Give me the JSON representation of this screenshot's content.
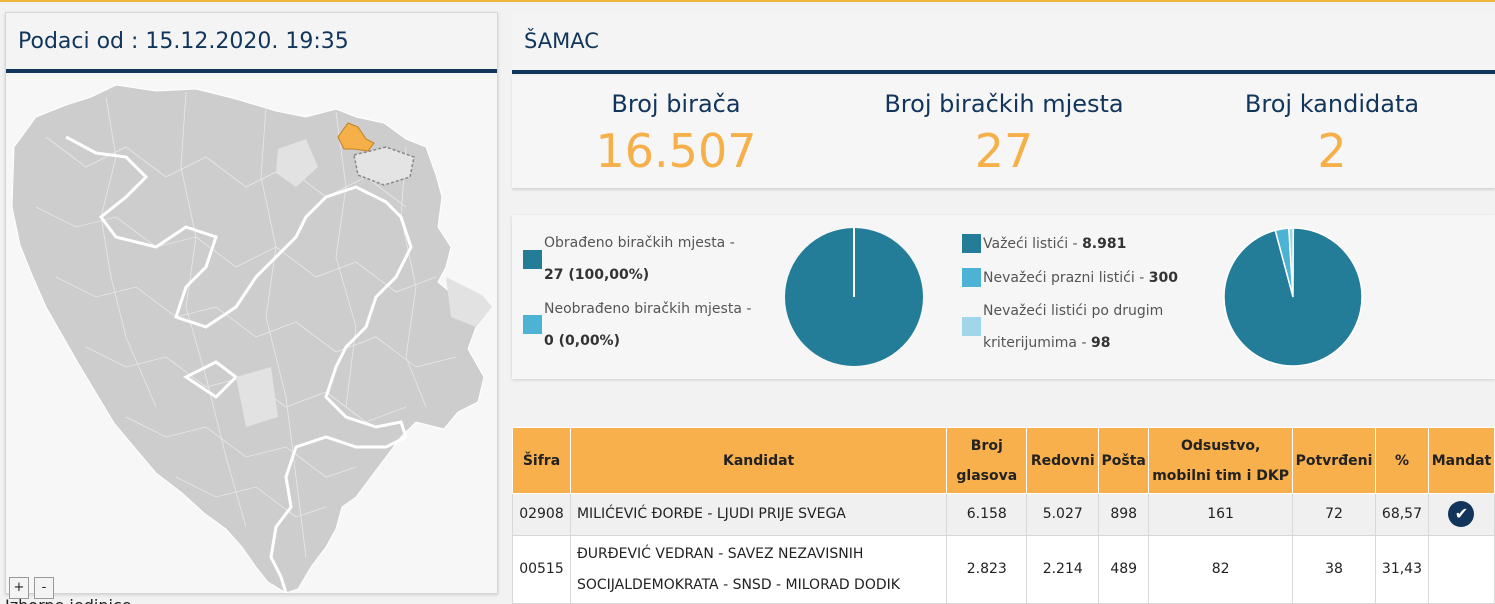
{
  "header": {
    "data_date": "Podaci od : 15.12.2020. 19:35"
  },
  "map": {
    "zoom_in": "+",
    "zoom_out": "-",
    "footer_text": "Izborne jedinice"
  },
  "municipality": {
    "name": "ŠAMAC"
  },
  "stats": [
    {
      "label": "Broj birača",
      "value": "16.507"
    },
    {
      "label": "Broj biračkih mjesta",
      "value": "27"
    },
    {
      "label": "Broj kandidata",
      "value": "2"
    }
  ],
  "processing": {
    "processed_label": "Obrađeno biračkih mjesta -",
    "processed_value": "27 (100,00%)",
    "unprocessed_label": "Neobrađeno biračkih mjesta -",
    "unprocessed_value": "0 (0,00%)",
    "processed_color": "#237d99",
    "unprocessed_color": "#4db3d4",
    "chart_values": [
      27,
      0
    ]
  },
  "ballots": {
    "valid_label": "Važeći listići -",
    "valid_value": "8.981",
    "invalid_empty_label": "Nevažeći prazni listići -",
    "invalid_empty_value": "300",
    "invalid_other_label_1": "Nevažeći listići po drugim",
    "invalid_other_label_2": "kriterijumima -",
    "invalid_other_value": "98",
    "colors": [
      "#237d99",
      "#4db3d4",
      "#9fd6e8"
    ],
    "chart_values": [
      8981,
      300,
      98
    ]
  },
  "table": {
    "headers": {
      "code": "Šifra",
      "candidate": "Kandidat",
      "votes_1": "Broj",
      "votes_2": "glasova",
      "regular": "Redovni",
      "mail": "Pošta",
      "absent_1": "Odsustvo,",
      "absent_2": "mobilni tim i DKP",
      "confirmed": "Potvrđeni",
      "percent": "%",
      "mandate": "Mandat"
    },
    "rows": [
      {
        "code": "02908",
        "candidate": "MILIĆEVIĆ ĐORĐE - LJUDI PRIJE SVEGA",
        "votes": "6.158",
        "regular": "5.027",
        "mail": "898",
        "absent": "161",
        "confirmed": "72",
        "percent": "68,57",
        "mandate_icon": "✔"
      },
      {
        "code": "00515",
        "candidate_line1": "ĐURĐEVIĆ VEDRAN - SAVEZ NEZAVISNIH",
        "candidate_line2": "SOCIJALDEMOKRATA - SNSD - MILORAD DODIK",
        "votes": "2.823",
        "regular": "2.214",
        "mail": "489",
        "absent": "82",
        "confirmed": "38",
        "percent": "31,43"
      }
    ]
  }
}
